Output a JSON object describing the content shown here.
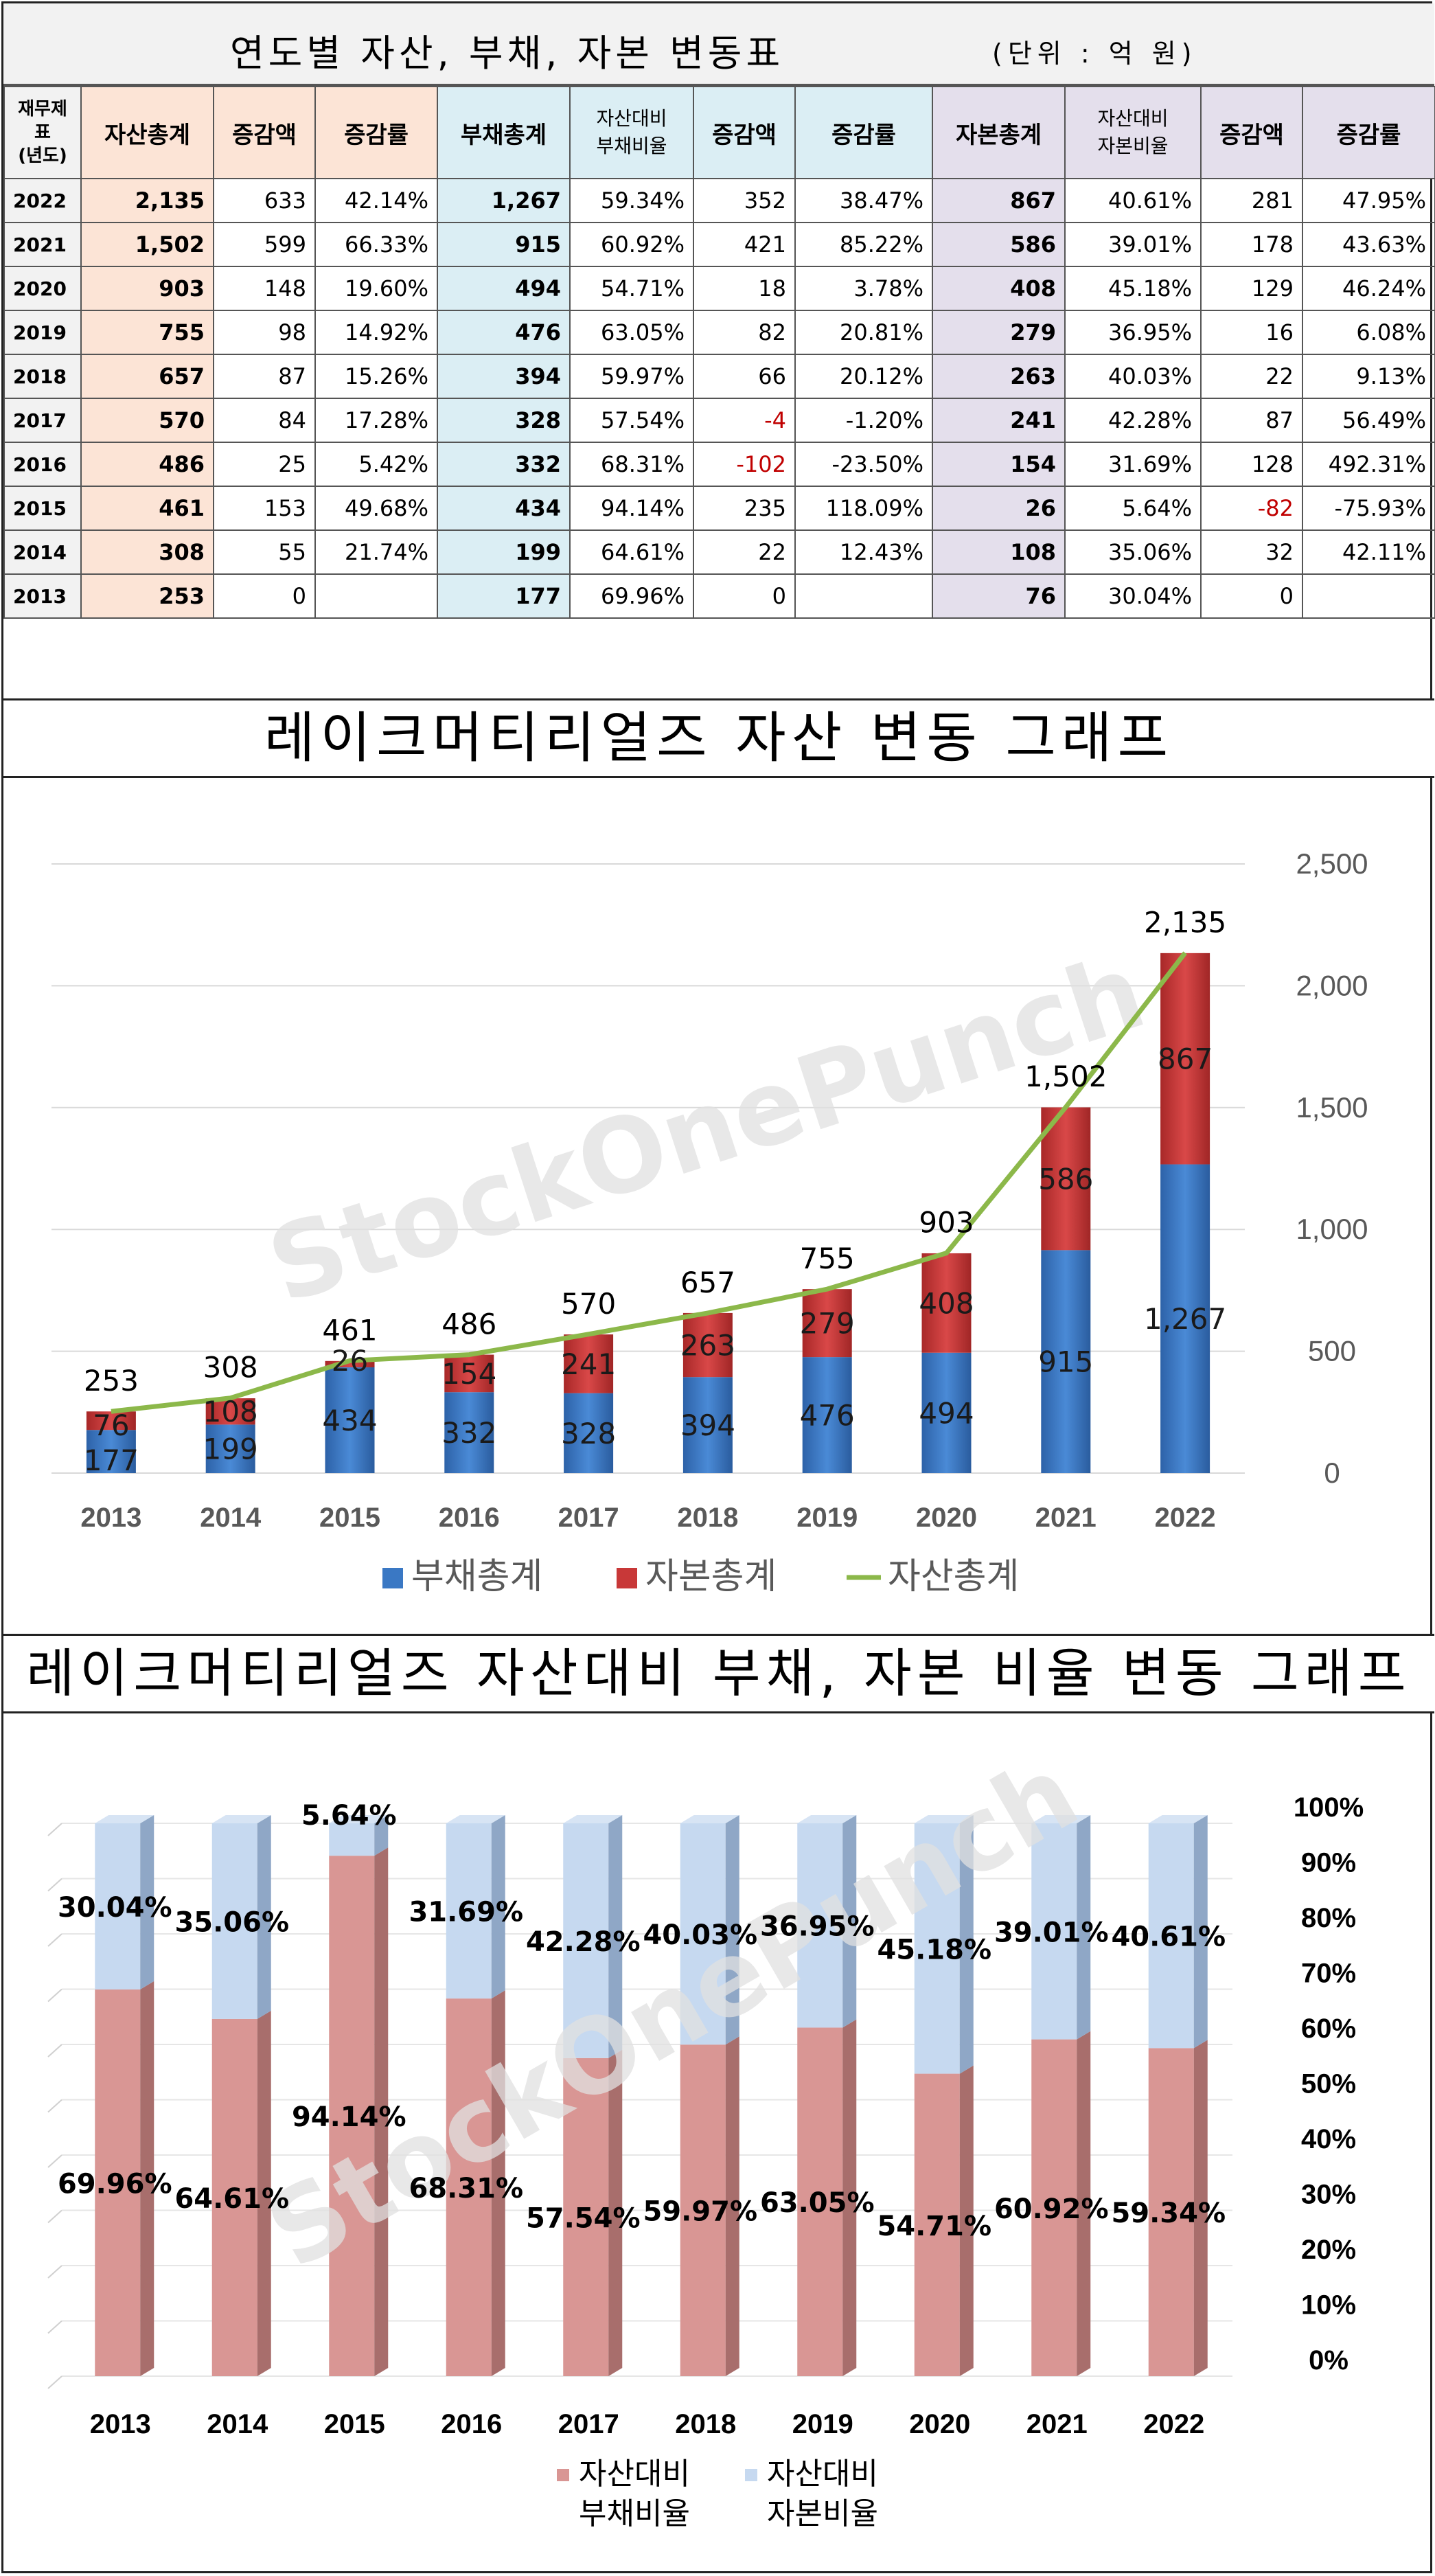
{
  "table": {
    "title": "연도별 자산, 부채, 자본 변동표",
    "unit": "(단위 : 억 원)",
    "year_header_lines": [
      "재무제",
      "표",
      "(년도)"
    ],
    "headers": {
      "assets_total": "자산총계",
      "assets_change": "증감액",
      "assets_rate": "증감률",
      "liab_total": "부채총계",
      "liab_ratio_lines": [
        "자산대비",
        "부채비율"
      ],
      "liab_change": "증감액",
      "liab_rate": "증감률",
      "equity_total": "자본총계",
      "equity_ratio_lines": [
        "자산대비",
        "자본비율"
      ],
      "equity_change": "증감액",
      "equity_rate": "증감률"
    },
    "rows": [
      {
        "year": "2022",
        "assets": "2,135",
        "a_chg": "633",
        "a_rate": "42.14%",
        "liab": "1,267",
        "l_ratio": "59.34%",
        "l_chg": "352",
        "l_rate": "38.47%",
        "equity": "867",
        "e_ratio": "40.61%",
        "e_chg": "281",
        "e_rate": "47.95%"
      },
      {
        "year": "2021",
        "assets": "1,502",
        "a_chg": "599",
        "a_rate": "66.33%",
        "liab": "915",
        "l_ratio": "60.92%",
        "l_chg": "421",
        "l_rate": "85.22%",
        "equity": "586",
        "e_ratio": "39.01%",
        "e_chg": "178",
        "e_rate": "43.63%"
      },
      {
        "year": "2020",
        "assets": "903",
        "a_chg": "148",
        "a_rate": "19.60%",
        "liab": "494",
        "l_ratio": "54.71%",
        "l_chg": "18",
        "l_rate": "3.78%",
        "equity": "408",
        "e_ratio": "45.18%",
        "e_chg": "129",
        "e_rate": "46.24%"
      },
      {
        "year": "2019",
        "assets": "755",
        "a_chg": "98",
        "a_rate": "14.92%",
        "liab": "476",
        "l_ratio": "63.05%",
        "l_chg": "82",
        "l_rate": "20.81%",
        "equity": "279",
        "e_ratio": "36.95%",
        "e_chg": "16",
        "e_rate": "6.08%"
      },
      {
        "year": "2018",
        "assets": "657",
        "a_chg": "87",
        "a_rate": "15.26%",
        "liab": "394",
        "l_ratio": "59.97%",
        "l_chg": "66",
        "l_rate": "20.12%",
        "equity": "263",
        "e_ratio": "40.03%",
        "e_chg": "22",
        "e_rate": "9.13%"
      },
      {
        "year": "2017",
        "assets": "570",
        "a_chg": "84",
        "a_rate": "17.28%",
        "liab": "328",
        "l_ratio": "57.54%",
        "l_chg": "-4",
        "l_rate": "-1.20%",
        "equity": "241",
        "e_ratio": "42.28%",
        "e_chg": "87",
        "e_rate": "56.49%"
      },
      {
        "year": "2016",
        "assets": "486",
        "a_chg": "25",
        "a_rate": "5.42%",
        "liab": "332",
        "l_ratio": "68.31%",
        "l_chg": "-102",
        "l_rate": "-23.50%",
        "equity": "154",
        "e_ratio": "31.69%",
        "e_chg": "128",
        "e_rate": "492.31%"
      },
      {
        "year": "2015",
        "assets": "461",
        "a_chg": "153",
        "a_rate": "49.68%",
        "liab": "434",
        "l_ratio": "94.14%",
        "l_chg": "235",
        "l_rate": "118.09%",
        "equity": "26",
        "e_ratio": "5.64%",
        "e_chg": "-82",
        "e_rate": "-75.93%"
      },
      {
        "year": "2014",
        "assets": "308",
        "a_chg": "55",
        "a_rate": "21.74%",
        "liab": "199",
        "l_ratio": "64.61%",
        "l_chg": "22",
        "l_rate": "12.43%",
        "equity": "108",
        "e_ratio": "35.06%",
        "e_chg": "32",
        "e_rate": "42.11%"
      },
      {
        "year": "2013",
        "assets": "253",
        "a_chg": "0",
        "a_rate": "",
        "liab": "177",
        "l_ratio": "69.96%",
        "l_chg": "0",
        "l_rate": "",
        "equity": "76",
        "e_ratio": "30.04%",
        "e_chg": "0",
        "e_rate": ""
      }
    ]
  },
  "colors": {
    "liab": "#3a78c4",
    "equity": "#c83838",
    "assets_line": "#8cb84a",
    "ratio_liab": "#d99694",
    "ratio_equity": "#c6d9f0",
    "neg_text": "#c00000"
  },
  "watermark": "StockOnePunch",
  "chart_data": [
    {
      "type": "bar",
      "title": "레이크머티리얼즈 자산 변동 그래프",
      "stacked": true,
      "categories": [
        "2013",
        "2014",
        "2015",
        "2016",
        "2017",
        "2018",
        "2019",
        "2020",
        "2021",
        "2022"
      ],
      "series": [
        {
          "name": "부채총계",
          "kind": "bar",
          "values": [
            177,
            199,
            434,
            332,
            328,
            394,
            476,
            494,
            915,
            1267
          ],
          "labels": [
            "177",
            "199",
            "434",
            "332",
            "328",
            "394",
            "476",
            "494",
            "915",
            "1,267"
          ]
        },
        {
          "name": "자본총계",
          "kind": "bar",
          "values": [
            76,
            108,
            26,
            154,
            241,
            263,
            279,
            408,
            586,
            867
          ],
          "labels": [
            "76",
            "108",
            "26",
            "154",
            "241",
            "263",
            "279",
            "408",
            "586",
            "867"
          ]
        },
        {
          "name": "자산총계",
          "kind": "line",
          "values": [
            253,
            308,
            461,
            486,
            570,
            657,
            755,
            903,
            1502,
            2135
          ],
          "labels": [
            "253",
            "308",
            "461",
            "486",
            "570",
            "657",
            "755",
            "903",
            "1,502",
            "2,135"
          ]
        }
      ],
      "ylim": [
        0,
        2500
      ],
      "yticks": [
        "0",
        "500",
        "1,000",
        "1,500",
        "2,000",
        "2,500"
      ],
      "ytick_values": [
        0,
        500,
        1000,
        1500,
        2000,
        2500
      ],
      "y_axis_side": "right",
      "grid": true,
      "legend": "bottom"
    },
    {
      "type": "bar",
      "title": "레이크머티리얼즈 자산대비 부채, 자본 비율 변동 그래프",
      "stacked": true,
      "percent": true,
      "categories": [
        "2013",
        "2014",
        "2015",
        "2016",
        "2017",
        "2018",
        "2019",
        "2020",
        "2021",
        "2022"
      ],
      "series": [
        {
          "name": "자산대비 부채비율",
          "values": [
            69.96,
            64.61,
            94.14,
            68.31,
            57.54,
            59.97,
            63.05,
            54.71,
            60.92,
            59.34
          ],
          "labels": [
            "69.96%",
            "64.61%",
            "94.14%",
            "68.31%",
            "57.54%",
            "59.97%",
            "63.05%",
            "54.71%",
            "60.92%",
            "59.34%"
          ]
        },
        {
          "name": "자산대비 자본비율",
          "values": [
            30.04,
            35.06,
            5.64,
            31.69,
            42.28,
            40.03,
            36.95,
            45.18,
            39.01,
            40.61
          ],
          "labels": [
            "30.04%",
            "35.06%",
            "5.64%",
            "31.69%",
            "42.28%",
            "40.03%",
            "36.95%",
            "45.18%",
            "39.01%",
            "40.61%"
          ]
        }
      ],
      "legend_lines": [
        [
          "자산대비",
          "부채비율"
        ],
        [
          "자산대비",
          "자본비율"
        ]
      ],
      "ylim": [
        0,
        100
      ],
      "yticks": [
        "0%",
        "10%",
        "20%",
        "30%",
        "40%",
        "50%",
        "60%",
        "70%",
        "80%",
        "90%",
        "100%"
      ],
      "y_axis_side": "right",
      "grid": true,
      "legend": "bottom"
    }
  ]
}
